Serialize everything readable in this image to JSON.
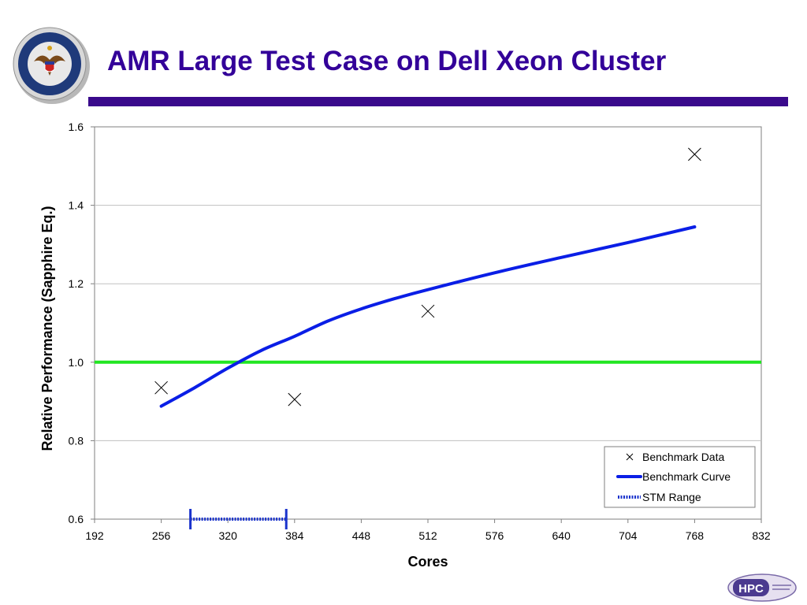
{
  "slide": {
    "title": "AMR Large Test Case on Dell Xeon Cluster",
    "seal_text": "DEPARTMENT OF DEFENSE · UNITED STATES OF AMERICA",
    "logo_text": "HPC"
  },
  "colors": {
    "title": "#330099",
    "title_rule": "#3a0a8c",
    "benchmark_curve": "#0a1ee6",
    "baseline": "#22e622",
    "stm_range": "#1a33cc",
    "gridline": "#c0c0c0"
  },
  "chart_data": {
    "type": "scatter",
    "xlabel": "Cores",
    "ylabel": "Relative Performance (Sapphire Eq.)",
    "xlim": [
      192,
      832
    ],
    "ylim": [
      0.6,
      1.6
    ],
    "xticks": [
      192,
      256,
      320,
      384,
      448,
      512,
      576,
      640,
      704,
      768,
      832
    ],
    "yticks": [
      0.6,
      0.8,
      1.0,
      1.2,
      1.4,
      1.6
    ],
    "ytick_labels": [
      "0.6",
      "0.8",
      "1.0",
      "1.2",
      "1.4",
      "1.6"
    ],
    "grid": "horizontal",
    "legend_position": "bottom-right",
    "series": [
      {
        "name": "Benchmark Data",
        "kind": "marker",
        "marker": "x",
        "x": [
          256,
          384,
          512,
          768
        ],
        "y": [
          0.935,
          0.905,
          1.13,
          1.53
        ]
      },
      {
        "name": "Benchmark Curve",
        "kind": "line",
        "x": [
          256,
          288,
          320,
          352,
          384,
          416,
          448,
          480,
          512,
          576,
          640,
          704,
          768
        ],
        "y": [
          0.888,
          0.935,
          0.985,
          1.03,
          1.066,
          1.105,
          1.136,
          1.162,
          1.185,
          1.228,
          1.267,
          1.305,
          1.345
        ]
      },
      {
        "name": "STM Range",
        "kind": "range",
        "x": [
          284,
          376
        ],
        "y": [
          0.6,
          0.6
        ]
      }
    ],
    "reference_line": {
      "y": 1.0
    }
  }
}
